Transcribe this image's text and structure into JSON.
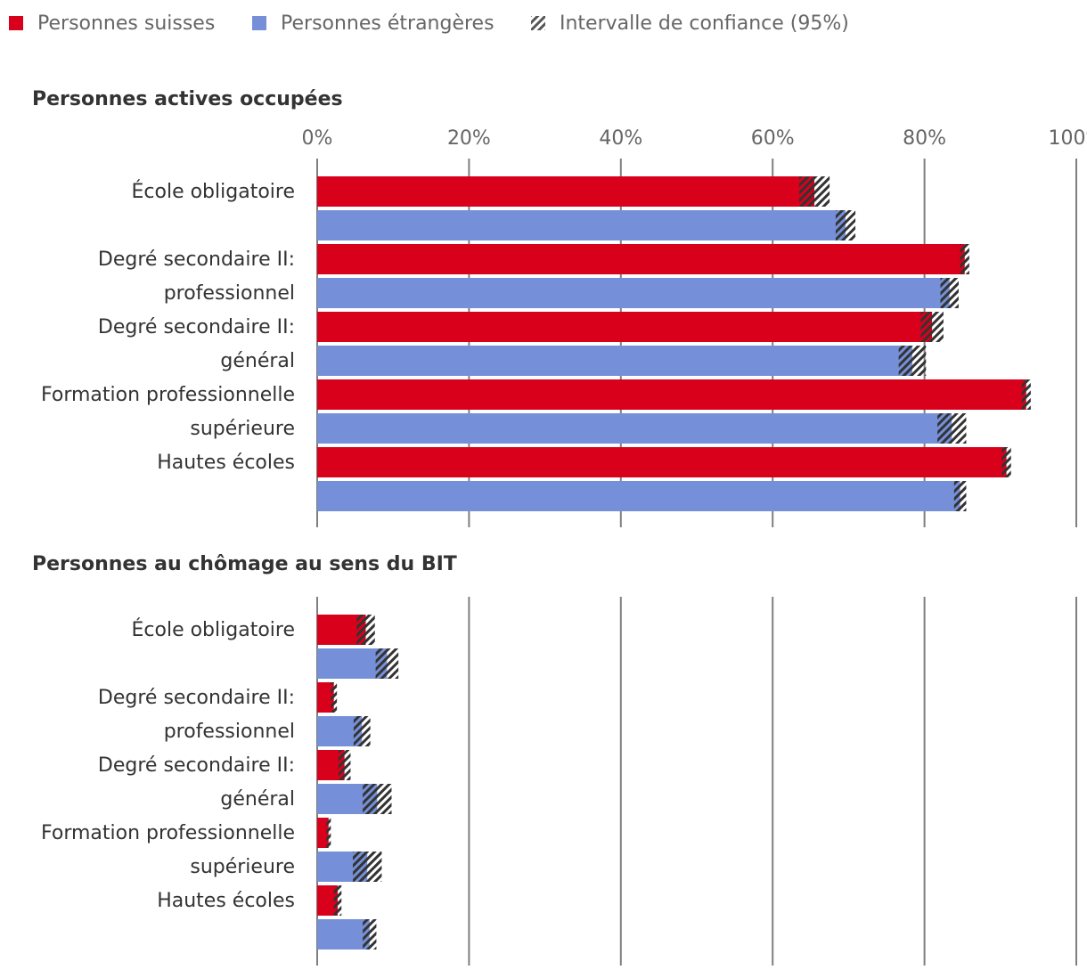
{
  "chart_data": {
    "type": "bar",
    "orientation": "horizontal",
    "legend": {
      "position": "top-left",
      "items": [
        {
          "name": "Personnes suisses",
          "color": "#d9001b"
        },
        {
          "name": "Personnes étrangères",
          "color": "#7590d8"
        },
        {
          "name": "Intervalle de confiance (95%)",
          "color": "#555555"
        }
      ]
    },
    "xlim": [
      0,
      100
    ],
    "ticks": [
      "0%",
      "20%",
      "40%",
      "60%",
      "80%",
      "100%"
    ],
    "tick_values": [
      0,
      20,
      40,
      60,
      80,
      100
    ],
    "grid": true,
    "category_labels": [
      [
        "École obligatoire"
      ],
      [
        "Degré secondaire II:",
        "professionnel"
      ],
      [
        "Degré secondaire II:",
        "général"
      ],
      [
        "Formation professionnelle",
        "supérieure"
      ],
      [
        "Hautes écoles"
      ]
    ],
    "panels": [
      {
        "title": "Personnes actives occupées",
        "series": [
          {
            "name": "Personnes suisses",
            "values": [
              65.5,
              85.3,
              81.0,
              93.4,
              90.8
            ],
            "ci": [
              [
                63.5,
                67.5
              ],
              [
                84.7,
                85.9
              ],
              [
                79.5,
                82.5
              ],
              [
                92.8,
                94.0
              ],
              [
                90.2,
                91.4
              ]
            ]
          },
          {
            "name": "Personnes étrangères",
            "values": [
              69.6,
              83.3,
              78.4,
              83.6,
              84.7
            ],
            "ci": [
              [
                68.3,
                70.9
              ],
              [
                82.1,
                84.5
              ],
              [
                76.6,
                80.2
              ],
              [
                81.7,
                85.5
              ],
              [
                83.9,
                85.5
              ]
            ]
          }
        ]
      },
      {
        "title": "Personnes au chômage au sens du BIT",
        "series": [
          {
            "name": "Personnes suisses",
            "values": [
              6.4,
              2.2,
              3.6,
              1.5,
              2.7
            ],
            "ci": [
              [
                5.2,
                7.6
              ],
              [
                1.8,
                2.6
              ],
              [
                2.8,
                4.4
              ],
              [
                1.2,
                1.8
              ],
              [
                2.2,
                3.2
              ]
            ]
          },
          {
            "name": "Personnes étrangères",
            "values": [
              9.2,
              5.9,
              7.9,
              6.6,
              6.9
            ],
            "ci": [
              [
                7.7,
                10.7
              ],
              [
                4.8,
                7.0
              ],
              [
                6.0,
                9.8
              ],
              [
                4.7,
                8.5
              ],
              [
                6.0,
                7.8
              ]
            ]
          }
        ]
      }
    ]
  }
}
